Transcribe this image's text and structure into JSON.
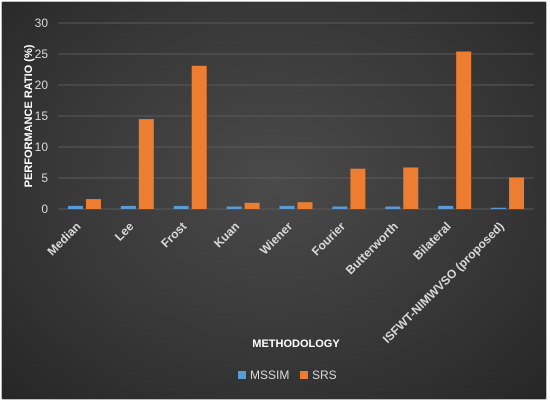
{
  "chart_data": {
    "type": "bar",
    "title": "",
    "xlabel": "METHODOLOGY",
    "ylabel": "PERFORMANCE RATIO (%)",
    "ylim": [
      0,
      30
    ],
    "yticks": [
      0,
      5,
      10,
      15,
      20,
      25,
      30
    ],
    "grid": true,
    "legend_position": "bottom",
    "categories": [
      "Median",
      "Lee",
      "Frost",
      "Kuan",
      "Wiener",
      "Fourier",
      "Butterworth",
      "Bilateral",
      "ISFWT-NIMWVSO (proposed)"
    ],
    "series": [
      {
        "name": "MSSIM",
        "color": "#5b9bd5",
        "values": [
          0.5,
          0.5,
          0.5,
          0.4,
          0.5,
          0.4,
          0.4,
          0.5,
          0.2
        ]
      },
      {
        "name": "SRS",
        "color": "#ed7d31",
        "values": [
          1.6,
          14.5,
          23.1,
          1.0,
          1.1,
          6.5,
          6.7,
          25.4,
          5.1
        ]
      }
    ]
  }
}
